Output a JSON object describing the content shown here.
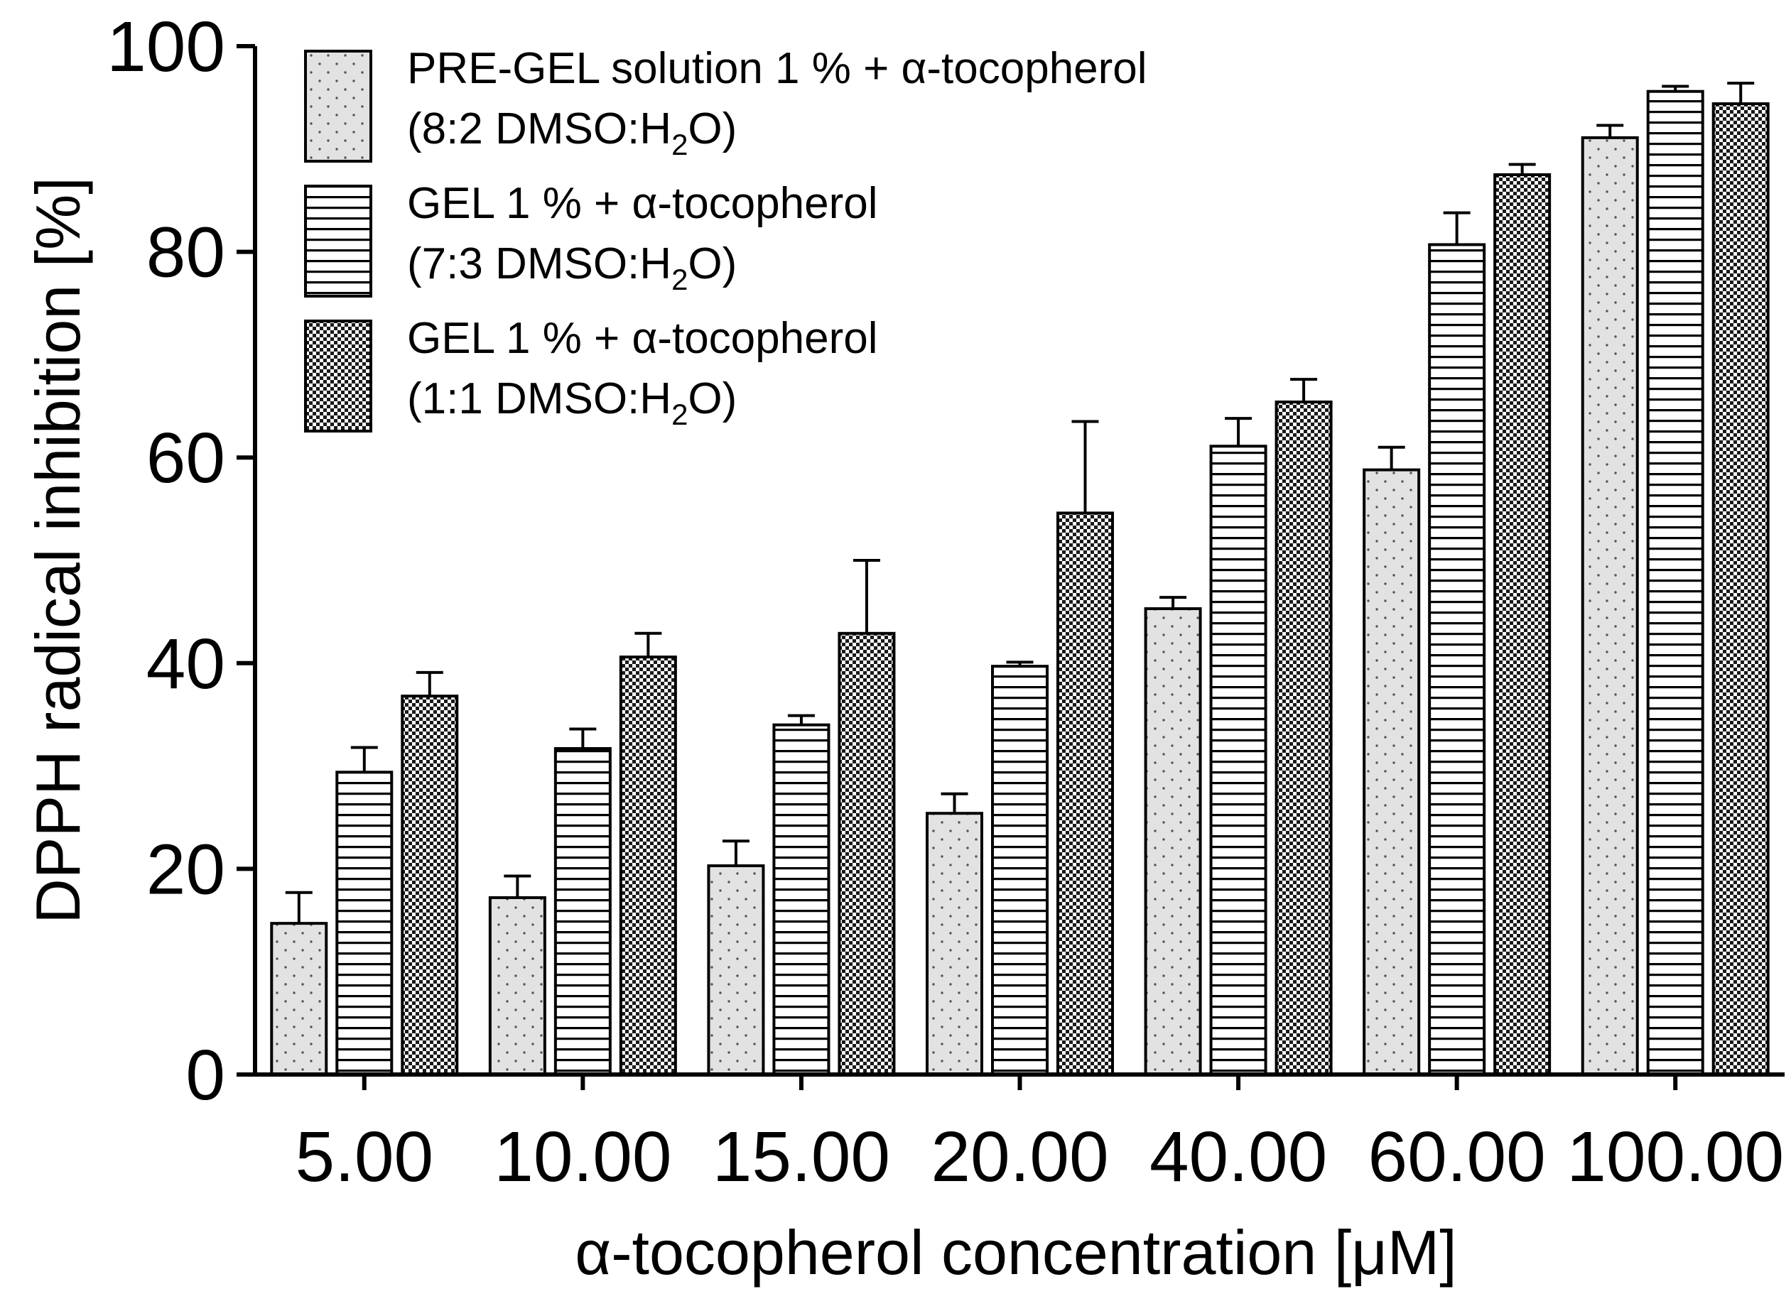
{
  "chart_data": {
    "type": "bar",
    "title": "",
    "xlabel": "α-tocopherol concentration [μM]",
    "ylabel": "DPPH radical inhibition [%]",
    "ylim": [
      0,
      100
    ],
    "yticks": [
      0,
      20,
      40,
      60,
      80,
      100
    ],
    "categories": [
      "5.00",
      "10.00",
      "15.00",
      "20.00",
      "40.00",
      "60.00",
      "100.00"
    ],
    "legend_position": "top-left",
    "series": [
      {
        "name": "PRE-GEL solution 1 % + α-tocopherol",
        "legend_line1": "PRE-GEL solution 1 % + α-tocopherol",
        "legend_line2_pre": "(8:2 DMSO:H",
        "legend_line2_sub": "2",
        "legend_line2_post": "O)",
        "pattern": "dots",
        "values": [
          14.7,
          17.2,
          20.3,
          25.4,
          45.3,
          58.8,
          91.1
        ],
        "errors": [
          3.0,
          2.1,
          2.4,
          1.9,
          1.1,
          2.2,
          1.2
        ]
      },
      {
        "name": "GEL 1 % + α-tocopherol",
        "legend_line1": "GEL 1 % + α-tocopherol",
        "legend_line2_pre": "(7:3 DMSO:H",
        "legend_line2_sub": "2",
        "legend_line2_post": "O)",
        "pattern": "horizontal-lines",
        "values": [
          29.4,
          31.7,
          34.0,
          39.7,
          61.1,
          80.7,
          95.6
        ],
        "errors": [
          2.4,
          1.9,
          0.9,
          0.4,
          2.7,
          3.1,
          0.5
        ]
      },
      {
        "name": "GEL 1 % + α-tocopherol",
        "legend_line1": "GEL 1 % + α-tocopherol",
        "legend_line2_pre": "(1:1 DMSO:H",
        "legend_line2_sub": "2",
        "legend_line2_post": "O)",
        "pattern": "checkerboard",
        "values": [
          36.8,
          40.6,
          42.9,
          54.6,
          65.4,
          87.5,
          94.4
        ],
        "errors": [
          2.3,
          2.3,
          7.1,
          8.9,
          2.2,
          1.0,
          2.0
        ]
      }
    ]
  }
}
